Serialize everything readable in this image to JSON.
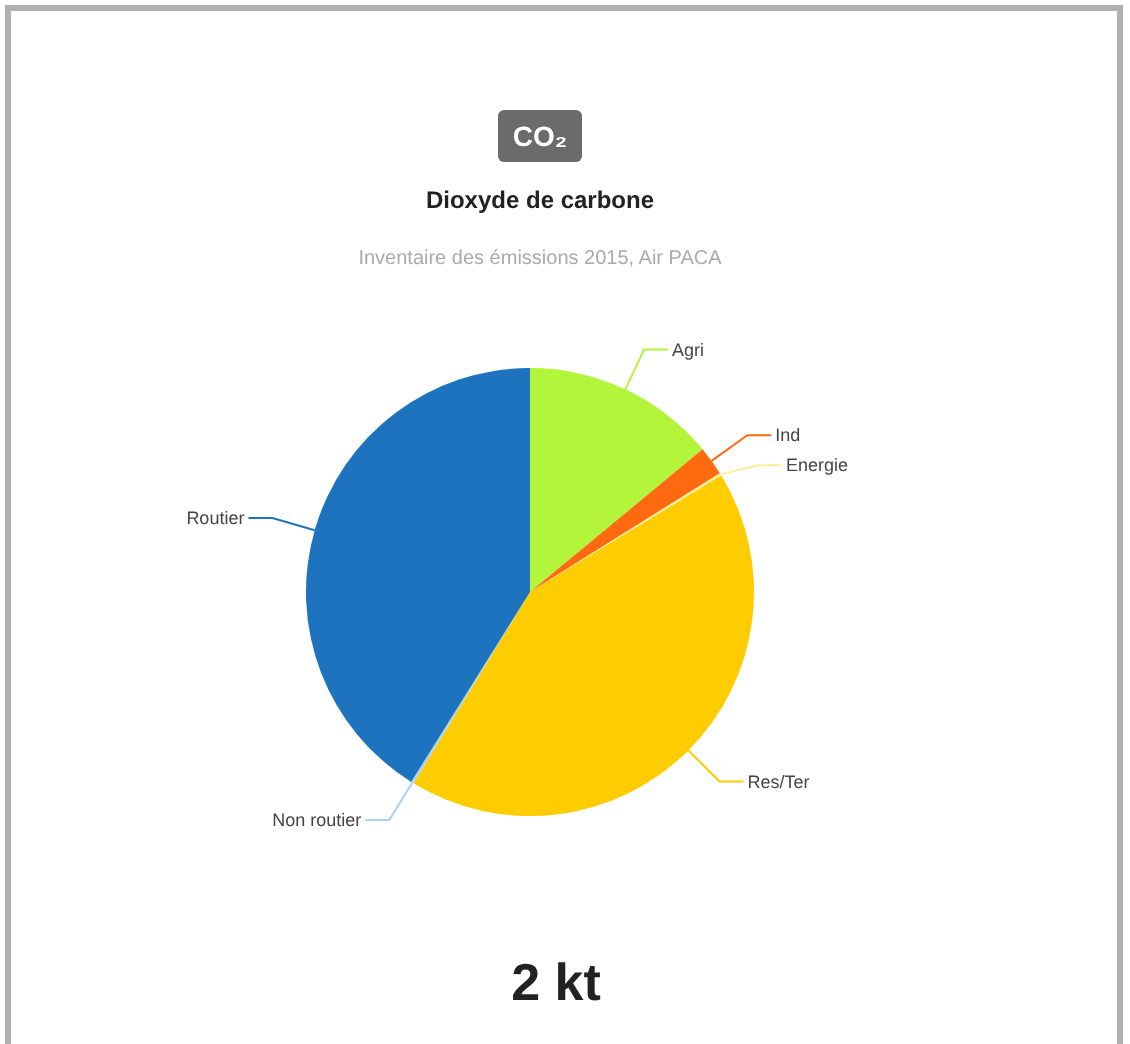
{
  "chart_data": {
    "type": "pie",
    "title": "Dioxyde de carbone",
    "subtitle": "Inventaire des émissions 2015, Air PACA",
    "categories": [
      "Agri",
      "Ind",
      "Energie",
      "Res/Ter",
      "Non routier",
      "Routier"
    ],
    "values": [
      14,
      2.1,
      0.2,
      42.4,
      0.2,
      41.1
    ],
    "colors": [
      "#b3f53a",
      "#ff6a10",
      "#ffee99",
      "#ffcc00",
      "#a8d4f0",
      "#1e73be"
    ],
    "annotations": [
      "CO₂",
      "2 kt"
    ]
  }
}
